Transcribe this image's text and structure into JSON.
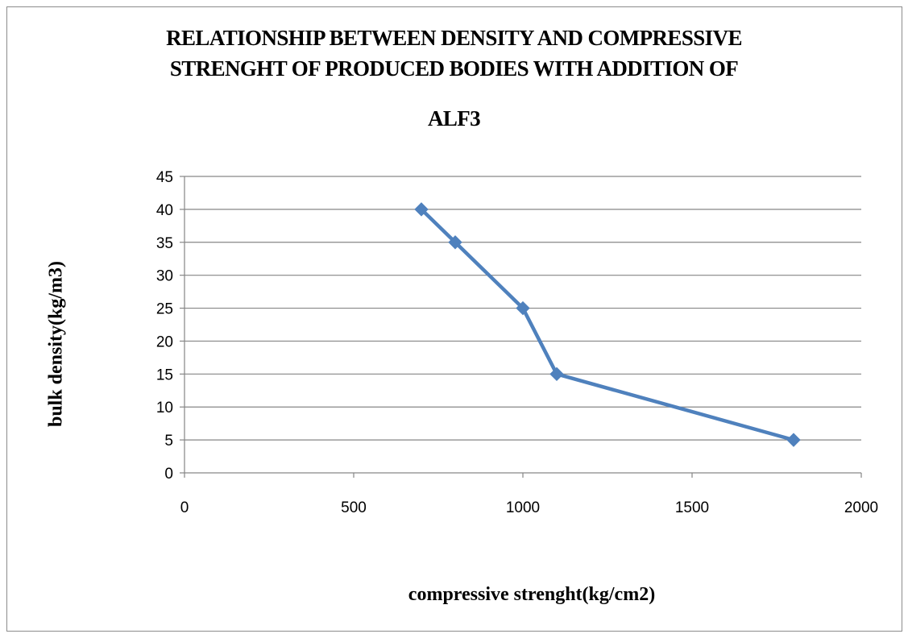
{
  "chart_data": {
    "type": "line",
    "title_lines": [
      "RELATIONSHIP BETWEEN DENSITY AND COMPRESSIVE",
      "STRENGHT OF PRODUCED BODIES WITH ADDITION OF",
      "ALF3"
    ],
    "xlabel": "compressive strenght(kg/cm2)",
    "ylabel": "bulk density(kg/m3)",
    "xlim": [
      0,
      2000
    ],
    "ylim": [
      0,
      45
    ],
    "x_ticks": [
      0,
      500,
      1000,
      1500,
      2000
    ],
    "y_ticks": [
      0,
      5,
      10,
      15,
      20,
      25,
      30,
      35,
      40,
      45
    ],
    "grid": "horizontal",
    "legend": "none",
    "series": [
      {
        "color": "#4f81bd",
        "marker": "diamond",
        "points": [
          {
            "x": 700,
            "y": 40
          },
          {
            "x": 800,
            "y": 35
          },
          {
            "x": 1000,
            "y": 25
          },
          {
            "x": 1100,
            "y": 15
          },
          {
            "x": 1800,
            "y": 5
          }
        ]
      }
    ]
  }
}
